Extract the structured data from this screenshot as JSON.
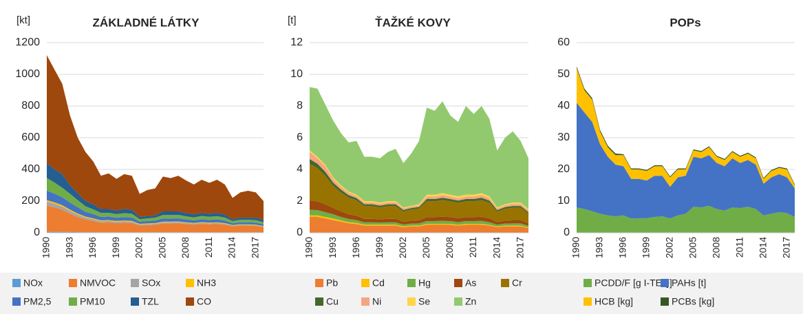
{
  "chart_data": [
    {
      "type": "area",
      "stacked": true,
      "title": "ZÁKLADNÉ LÁTKY",
      "unit_label": "[kt]",
      "categories": [
        "1990",
        null,
        null,
        "1993",
        null,
        null,
        "1996",
        null,
        null,
        "1999",
        null,
        null,
        "2002",
        null,
        null,
        "2005",
        null,
        null,
        "2008",
        null,
        null,
        "2011",
        null,
        null,
        "2014",
        null,
        null,
        "2017",
        null
      ],
      "ylim": [
        0,
        1200
      ],
      "yticks": [
        0,
        200,
        400,
        600,
        800,
        1000,
        1200
      ],
      "grid": true,
      "series": [
        {
          "name": "NOx",
          "color": "#5b9bd5",
          "values": [
            6,
            6,
            5,
            5,
            4,
            4,
            4,
            3,
            3,
            3,
            3,
            3,
            3,
            3,
            3,
            3,
            3,
            3,
            3,
            3,
            3,
            3,
            3,
            3,
            3,
            3,
            3,
            3,
            3
          ]
        },
        {
          "name": "NMVOC",
          "color": "#ed7d31",
          "values": [
            165,
            155,
            140,
            115,
            95,
            80,
            70,
            60,
            62,
            58,
            60,
            58,
            42,
            45,
            47,
            55,
            55,
            56,
            52,
            48,
            53,
            50,
            52,
            48,
            38,
            42,
            42,
            40,
            33
          ]
        },
        {
          "name": "SOx",
          "color": "#a5a5a5",
          "values": [
            25,
            22,
            20,
            18,
            15,
            12,
            11,
            10,
            10,
            9,
            9,
            9,
            7,
            7,
            7,
            8,
            8,
            8,
            7,
            7,
            7,
            7,
            7,
            6,
            5,
            5,
            5,
            5,
            4
          ]
        },
        {
          "name": "NH3",
          "color": "#ffc000",
          "values": [
            10,
            9,
            9,
            8,
            7,
            6,
            6,
            5,
            5,
            5,
            5,
            5,
            4,
            4,
            4,
            4,
            4,
            4,
            4,
            4,
            4,
            4,
            4,
            4,
            3,
            3,
            3,
            3,
            3
          ]
        },
        {
          "name": "PM2,5",
          "color": "#4472c4",
          "values": [
            60,
            55,
            50,
            45,
            40,
            30,
            27,
            22,
            22,
            20,
            22,
            21,
            14,
            15,
            16,
            20,
            20,
            20,
            18,
            16,
            18,
            17,
            18,
            16,
            11,
            13,
            13,
            13,
            10
          ]
        },
        {
          "name": "PM10",
          "color": "#70ad47",
          "values": [
            80,
            70,
            60,
            55,
            45,
            35,
            30,
            25,
            24,
            23,
            25,
            24,
            16,
            17,
            18,
            22,
            22,
            22,
            20,
            19,
            21,
            20,
            21,
            19,
            14,
            16,
            16,
            16,
            13
          ]
        },
        {
          "name": "TZL",
          "color": "#255e91",
          "values": [
            95,
            83,
            86,
            54,
            44,
            33,
            32,
            25,
            24,
            22,
            26,
            25,
            14,
            14,
            15,
            23,
            23,
            22,
            21,
            18,
            19,
            19,
            20,
            19,
            11,
            13,
            13,
            15,
            14
          ]
        },
        {
          "name": "CO",
          "color": "#9e480e",
          "values": [
            680,
            630,
            570,
            440,
            350,
            310,
            270,
            210,
            225,
            200,
            220,
            215,
            145,
            165,
            170,
            220,
            210,
            225,
            205,
            190,
            210,
            195,
            210,
            190,
            135,
            160,
            170,
            160,
            120
          ]
        }
      ]
    },
    {
      "type": "area",
      "stacked": true,
      "title": "ŤAŽKÉ KOVY",
      "unit_label": "[t]",
      "categories": [
        "1990",
        null,
        null,
        "1993",
        null,
        null,
        "1996",
        null,
        null,
        "1999",
        null,
        null,
        "2002",
        null,
        null,
        "2005",
        null,
        null,
        "2008",
        null,
        null,
        "2011",
        null,
        null,
        "2014",
        null,
        null,
        "2017",
        null
      ],
      "ylim": [
        0,
        12
      ],
      "yticks": [
        0,
        2,
        4,
        6,
        8,
        10,
        12
      ],
      "grid": true,
      "series": [
        {
          "name": "Pb",
          "color": "#ed7d31",
          "values": [
            1.0,
            1.0,
            0.9,
            0.8,
            0.7,
            0.6,
            0.55,
            0.45,
            0.45,
            0.45,
            0.45,
            0.45,
            0.35,
            0.4,
            0.4,
            0.5,
            0.5,
            0.5,
            0.5,
            0.45,
            0.5,
            0.5,
            0.5,
            0.45,
            0.35,
            0.4,
            0.4,
            0.4,
            0.3
          ]
        },
        {
          "name": "Cd",
          "color": "#ffc000",
          "values": [
            0.1,
            0.1,
            0.1,
            0.1,
            0.08,
            0.07,
            0.07,
            0.06,
            0.06,
            0.06,
            0.06,
            0.06,
            0.05,
            0.05,
            0.05,
            0.06,
            0.06,
            0.06,
            0.06,
            0.05,
            0.06,
            0.06,
            0.06,
            0.05,
            0.04,
            0.05,
            0.05,
            0.05,
            0.04
          ]
        },
        {
          "name": "Hg",
          "color": "#70ad47",
          "values": [
            0.35,
            0.33,
            0.3,
            0.27,
            0.22,
            0.2,
            0.18,
            0.15,
            0.15,
            0.14,
            0.15,
            0.15,
            0.12,
            0.13,
            0.14,
            0.18,
            0.18,
            0.19,
            0.18,
            0.17,
            0.18,
            0.18,
            0.19,
            0.17,
            0.12,
            0.13,
            0.14,
            0.14,
            0.11
          ]
        },
        {
          "name": "As",
          "color": "#9e480e",
          "values": [
            0.6,
            0.55,
            0.5,
            0.4,
            0.35,
            0.3,
            0.27,
            0.22,
            0.22,
            0.2,
            0.22,
            0.22,
            0.17,
            0.18,
            0.19,
            0.25,
            0.25,
            0.26,
            0.25,
            0.24,
            0.25,
            0.25,
            0.26,
            0.24,
            0.16,
            0.18,
            0.19,
            0.19,
            0.15
          ]
        },
        {
          "name": "Cr",
          "color": "#997300",
          "values": [
            2.3,
            2.1,
            1.8,
            1.4,
            1.2,
            1.05,
            0.98,
            0.8,
            0.8,
            0.75,
            0.8,
            0.8,
            0.65,
            0.7,
            0.75,
            1.0,
            1.0,
            1.05,
            1.0,
            0.98,
            1.0,
            1.0,
            1.05,
            0.98,
            0.66,
            0.75,
            0.8,
            0.8,
            0.6
          ]
        },
        {
          "name": "Cu",
          "color": "#43682b",
          "values": [
            0.3,
            0.28,
            0.25,
            0.2,
            0.18,
            0.15,
            0.14,
            0.12,
            0.12,
            0.11,
            0.12,
            0.12,
            0.1,
            0.1,
            0.1,
            0.14,
            0.14,
            0.15,
            0.14,
            0.14,
            0.14,
            0.14,
            0.15,
            0.14,
            0.1,
            0.11,
            0.11,
            0.11,
            0.1
          ]
        },
        {
          "name": "Ni",
          "color": "#f4a582",
          "values": [
            0.45,
            0.34,
            0.35,
            0.23,
            0.18,
            0.15,
            0.13,
            0.12,
            0.12,
            0.12,
            0.12,
            0.12,
            0.1,
            0.1,
            0.1,
            0.15,
            0.15,
            0.17,
            0.15,
            0.15,
            0.15,
            0.15,
            0.17,
            0.15,
            0.1,
            0.11,
            0.13,
            0.13,
            0.13
          ]
        },
        {
          "name": "Se",
          "color": "#ffd54a",
          "values": [
            0.1,
            0.1,
            0.1,
            0.1,
            0.09,
            0.08,
            0.08,
            0.08,
            0.08,
            0.07,
            0.08,
            0.08,
            0.06,
            0.04,
            0.07,
            0.12,
            0.12,
            0.12,
            0.12,
            0.12,
            0.12,
            0.12,
            0.12,
            0.12,
            0.07,
            0.07,
            0.08,
            0.08,
            0.07
          ]
        },
        {
          "name": "Zn",
          "color": "#92c96e",
          "values": [
            4.0,
            4.3,
            3.8,
            3.6,
            3.3,
            3.1,
            3.4,
            2.8,
            2.8,
            2.8,
            3.1,
            3.3,
            2.8,
            3.3,
            4.0,
            5.5,
            5.3,
            5.8,
            5.0,
            4.7,
            5.6,
            5.1,
            5.5,
            4.9,
            3.6,
            4.2,
            4.5,
            3.9,
            3.2
          ]
        }
      ]
    },
    {
      "type": "area",
      "stacked": true,
      "title": "POPs",
      "categories": [
        "1990",
        null,
        null,
        "1993",
        null,
        null,
        "1996",
        null,
        null,
        "1999",
        null,
        null,
        "2002",
        null,
        null,
        "2005",
        null,
        null,
        "2008",
        null,
        null,
        "2011",
        null,
        null,
        "2014",
        null,
        null,
        "2017",
        null
      ],
      "ylim": [
        0,
        60
      ],
      "yticks": [
        0,
        10,
        20,
        30,
        40,
        50,
        60
      ],
      "grid": true,
      "series": [
        {
          "name": "PCDD/F [g I-TEQ]",
          "color": "#70ad47",
          "values": [
            8,
            7.5,
            6.8,
            6,
            5.5,
            5.2,
            5.5,
            4.5,
            4.6,
            4.6,
            5,
            5.2,
            4.5,
            5.5,
            6,
            8.2,
            8,
            8.5,
            7.5,
            7,
            8,
            7.8,
            8.2,
            7.5,
            5.5,
            6,
            6.5,
            6.2,
            5
          ]
        },
        {
          "name": "PAHs [t]",
          "color": "#4472c4",
          "values": [
            33,
            30.5,
            28.2,
            22,
            18.5,
            16.3,
            15.5,
            12.5,
            12.4,
            11.9,
            13,
            12.8,
            10,
            12,
            12,
            15.8,
            15.5,
            16,
            14.5,
            14,
            15.5,
            14.2,
            14.8,
            14,
            10,
            11.5,
            12,
            11.3,
            9
          ]
        },
        {
          "name": "HCB [kg]",
          "color": "#ffc000",
          "values": [
            11,
            7,
            7,
            4,
            3,
            3,
            3.5,
            3,
            3,
            3,
            3,
            3,
            3,
            2.5,
            2,
            2,
            2,
            2.5,
            2,
            2,
            2,
            2,
            2,
            2,
            1.5,
            2,
            2,
            2.5,
            1
          ]
        },
        {
          "name": "PCBs [kg]",
          "color": "#375623",
          "values": [
            0.5,
            0.5,
            0.5,
            0.5,
            0.5,
            0.5,
            0.3,
            0.3,
            0.3,
            0.3,
            0.3,
            0.3,
            0.3,
            0.3,
            0.3,
            0.3,
            0.3,
            0.3,
            0.3,
            0.3,
            0.3,
            0.3,
            0.3,
            0.3,
            0.3,
            0.3,
            0.3,
            0.3,
            0.3
          ]
        }
      ]
    }
  ]
}
